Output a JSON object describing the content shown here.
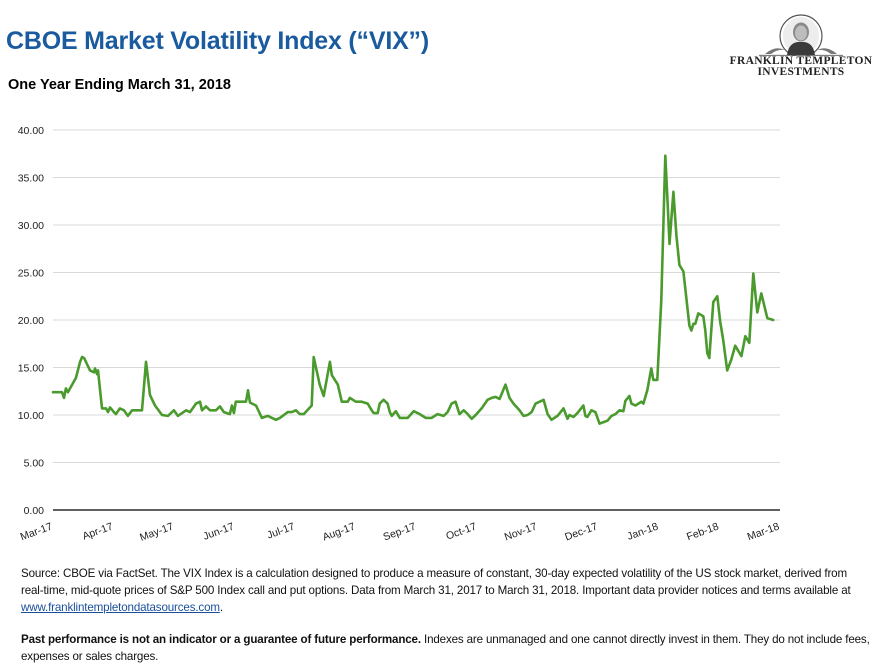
{
  "header": {
    "title": "CBOE Market Volatility Index (“VIX”)",
    "subtitle": "One Year Ending March 31, 2018"
  },
  "logo": {
    "line1": "FRANKLIN TEMPLETON",
    "line2": "INVESTMENTS",
    "icon": "benjamin-franklin-portrait-emblem"
  },
  "colors": {
    "title": "#1a5a9e",
    "series": "#4a9a2e",
    "grid": "#d9d9d9",
    "axis": "#000000",
    "link": "#1a4f9a"
  },
  "chart_data": {
    "type": "line",
    "title": "CBOE Market Volatility Index (“VIX”)",
    "subtitle": "One Year Ending March 31, 2018",
    "xlabel": "",
    "ylabel": "",
    "ylim": [
      0,
      40
    ],
    "yticks": [
      0,
      5,
      10,
      15,
      20,
      25,
      30,
      35,
      40
    ],
    "ytick_labels": [
      "0.00",
      "5.00",
      "10.00",
      "15.00",
      "20.00",
      "25.00",
      "30.00",
      "35.00",
      "40.00"
    ],
    "x_domain_days": [
      0,
      365
    ],
    "x_start_date": "2017-03-31",
    "x_end_date": "2018-03-31",
    "xtick_labels": [
      "Mar-17",
      "Apr-17",
      "May-17",
      "Jun-17",
      "Jul-17",
      "Aug-17",
      "Sep-17",
      "Oct-17",
      "Nov-17",
      "Dec-17",
      "Jan-18",
      "Feb-18",
      "Mar-18"
    ],
    "grid": true,
    "legend": "none",
    "series": [
      {
        "name": "VIX",
        "x_days": [
          0,
          4.5,
          5.5,
          6.5,
          7.5,
          11.5,
          13.6,
          14.6,
          15.6,
          18.6,
          20.6,
          21.1,
          22.1,
          22.6,
          24.6,
          26.6,
          27.6,
          28.6,
          30.6,
          31.6,
          33.6,
          35.6,
          37.6,
          39.7,
          44.7,
          46.7,
          48.7,
          51.2,
          54.7,
          57.7,
          60.7,
          62.7,
          66.8,
          68.8,
          71.8,
          73.8,
          74.8,
          76.8,
          78.8,
          81.8,
          83.8,
          85.8,
          88.8,
          89.8,
          90.8,
          91.8,
          96.9,
          97.9,
          98.9,
          101.9,
          104.9,
          107.9,
          111.9,
          113.9,
          117.9,
          119.9,
          121.9,
          123.9,
          125.9,
          129.9,
          130.9,
          133.9,
          135.9,
          139.0,
          140.0,
          143.0,
          145.0,
          148.0,
          149.0,
          152.0,
          155.0,
          158.0,
          160.0,
          161.0,
          163.0,
          164.0,
          166.0,
          168.0,
          169.1,
          170.1,
          172.1,
          174.1,
          178.1,
          181.1,
          184.1,
          187.1,
          190.1,
          193.1,
          196.1,
          198.1,
          200.1,
          202.1,
          204.1,
          206.2,
          208.2,
          210.2,
          212.2,
          215.2,
          218.2,
          220.2,
          222.2,
          224.2,
          227.2,
          229.2,
          231.2,
          234.2,
          236.2,
          238.3,
          240.3,
          242.3,
          245.3,
          246.3,
          248.3,
          250.3,
          253.3,
          256.3,
          258.3,
          259.3,
          261.3,
          263.3,
          266.3,
          267.3,
          268.3,
          270.3,
          272.3,
          274.4,
          278.4,
          280.4,
          282.4,
          284.4,
          286.4,
          287.4,
          289.4,
          290.4,
          292.4,
          295.4,
          296.4,
          298.4,
          300.4,
          301.4,
          303.4,
          305.4,
          307.4,
          308.5,
          309.5,
          311.5,
          313.0,
          314.5,
          316.5,
          319.5,
          320.5,
          321.5,
          322.5,
          324.0,
          326.5,
          327.5,
          328.5,
          329.5,
          331.5,
          333.5,
          335.0,
          335.5,
          336.5,
          338.5,
          340.5,
          342.5,
          345.6,
          347.6,
          349.6,
          351.6,
          353.6,
          355.6,
          358.6,
          361.6,
          362.6,
          365.0
        ],
        "values": [
          12.4,
          12.4,
          11.8,
          12.8,
          12.4,
          13.9,
          15.6,
          16.1,
          16.0,
          14.7,
          14.5,
          14.9,
          14.3,
          14.7,
          10.7,
          10.7,
          10.3,
          10.8,
          10.3,
          10.1,
          10.7,
          10.5,
          9.9,
          10.5,
          10.5,
          15.6,
          12.1,
          11.0,
          10.0,
          9.9,
          10.5,
          9.9,
          10.5,
          10.3,
          11.2,
          11.4,
          10.5,
          10.9,
          10.5,
          10.5,
          10.9,
          10.3,
          10.1,
          11.0,
          10.2,
          11.4,
          11.4,
          12.6,
          11.3,
          11.0,
          9.7,
          9.9,
          9.5,
          9.7,
          10.3,
          10.3,
          10.5,
          10.1,
          10.1,
          11.0,
          16.1,
          13.2,
          12.0,
          15.6,
          14.2,
          13.2,
          11.4,
          11.4,
          11.8,
          11.4,
          11.4,
          11.2,
          10.5,
          10.2,
          10.2,
          11.2,
          11.6,
          11.2,
          10.3,
          9.9,
          10.4,
          9.7,
          9.7,
          10.4,
          10.1,
          9.7,
          9.7,
          10.1,
          9.9,
          10.3,
          11.2,
          11.4,
          10.1,
          10.5,
          10.1,
          9.6,
          10.0,
          10.7,
          11.6,
          11.8,
          11.9,
          11.7,
          13.2,
          11.8,
          11.2,
          10.5,
          9.9,
          10.0,
          10.3,
          11.2,
          11.5,
          11.6,
          10.1,
          9.5,
          9.9,
          10.7,
          9.6,
          10.0,
          9.8,
          10.2,
          11.0,
          9.9,
          9.8,
          10.5,
          10.3,
          9.1,
          9.4,
          9.9,
          10.1,
          10.5,
          10.4,
          11.5,
          12.0,
          11.2,
          11.0,
          11.4,
          11.2,
          12.6,
          14.9,
          13.7,
          13.7,
          22.1,
          37.3,
          32.6,
          28.0,
          33.5,
          28.9,
          25.8,
          25.1,
          19.4,
          18.9,
          19.6,
          19.6,
          20.7,
          20.4,
          18.9,
          16.5,
          16.0,
          21.9,
          22.5,
          19.8,
          19.2,
          17.9,
          14.7,
          15.8,
          17.3,
          16.2,
          18.3,
          17.6,
          24.9,
          20.8,
          22.8,
          20.2,
          20.0
        ]
      }
    ]
  },
  "footnote": {
    "text_before_link": "Source: CBOE via FactSet. The VIX Index is a calculation designed to produce a measure of constant, 30-day expected volatility of the US stock market, derived from real-time, mid-quote prices of S&P 500 Index call and put options. Data from March 31, 2017 to March 31, 2018. Important data provider notices and terms available at ",
    "link_text": "www.franklintempletondatasources.com",
    "text_after_link": "."
  },
  "disclaimer": {
    "bold_text": "Past performance is not an indicator or a guarantee of future performance.",
    "text": " Indexes are unmanaged and one cannot directly invest in them. They do not include fees, expenses or sales charges."
  }
}
